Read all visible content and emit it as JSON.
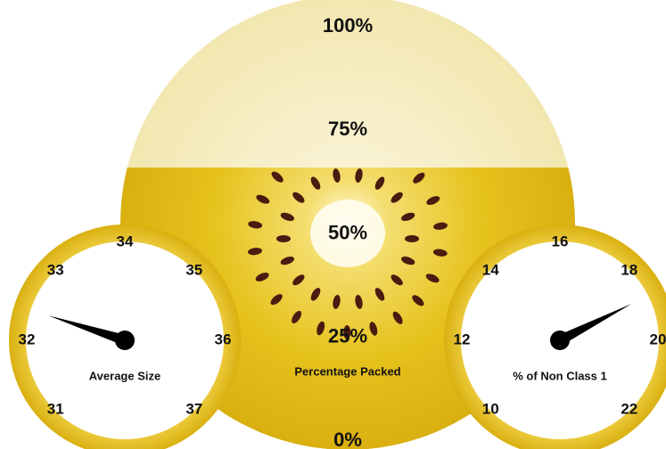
{
  "chart_data": [
    {
      "type": "fill",
      "title": "Percentage Packed",
      "value": 66,
      "ylim": [
        0,
        100
      ],
      "yticks": [
        {
          "value": 0,
          "label": "0%"
        },
        {
          "value": 25,
          "label": "25%"
        },
        {
          "value": 50,
          "label": "50%"
        },
        {
          "value": 75,
          "label": "75%"
        },
        {
          "value": 100,
          "label": "100%"
        }
      ]
    },
    {
      "type": "gauge",
      "title": "Average Size",
      "value": 32.4,
      "ylim": [
        31,
        37
      ],
      "yticks": [
        31,
        32,
        33,
        34,
        35,
        36,
        37
      ]
    },
    {
      "type": "gauge",
      "title": "% of Non Class 1",
      "value": 18.8,
      "ylim": [
        10,
        22
      ],
      "yticks": [
        10,
        12,
        14,
        16,
        18,
        20,
        22
      ]
    }
  ]
}
